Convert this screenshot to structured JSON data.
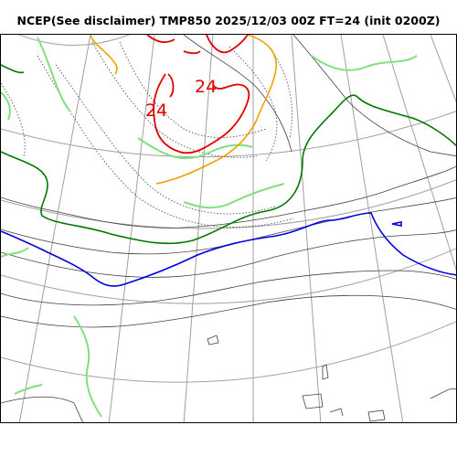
{
  "header": {
    "title": "NCEP(See disclaimer) TMP850 2025/12/03 00Z FT=24 (init 0200Z)"
  },
  "map": {
    "labels": {
      "isotherm_a": "24",
      "isotherm_b": "24"
    },
    "colors": {
      "frame": "#000000",
      "graticule": "#a0a0a0",
      "coast": "#404040",
      "dotted_isotherm": "#404040",
      "cold_red": "#e00000",
      "orange": "#f0a000",
      "light_green": "#80e080",
      "dark_green": "#007800",
      "blue": "#0000e0"
    }
  }
}
